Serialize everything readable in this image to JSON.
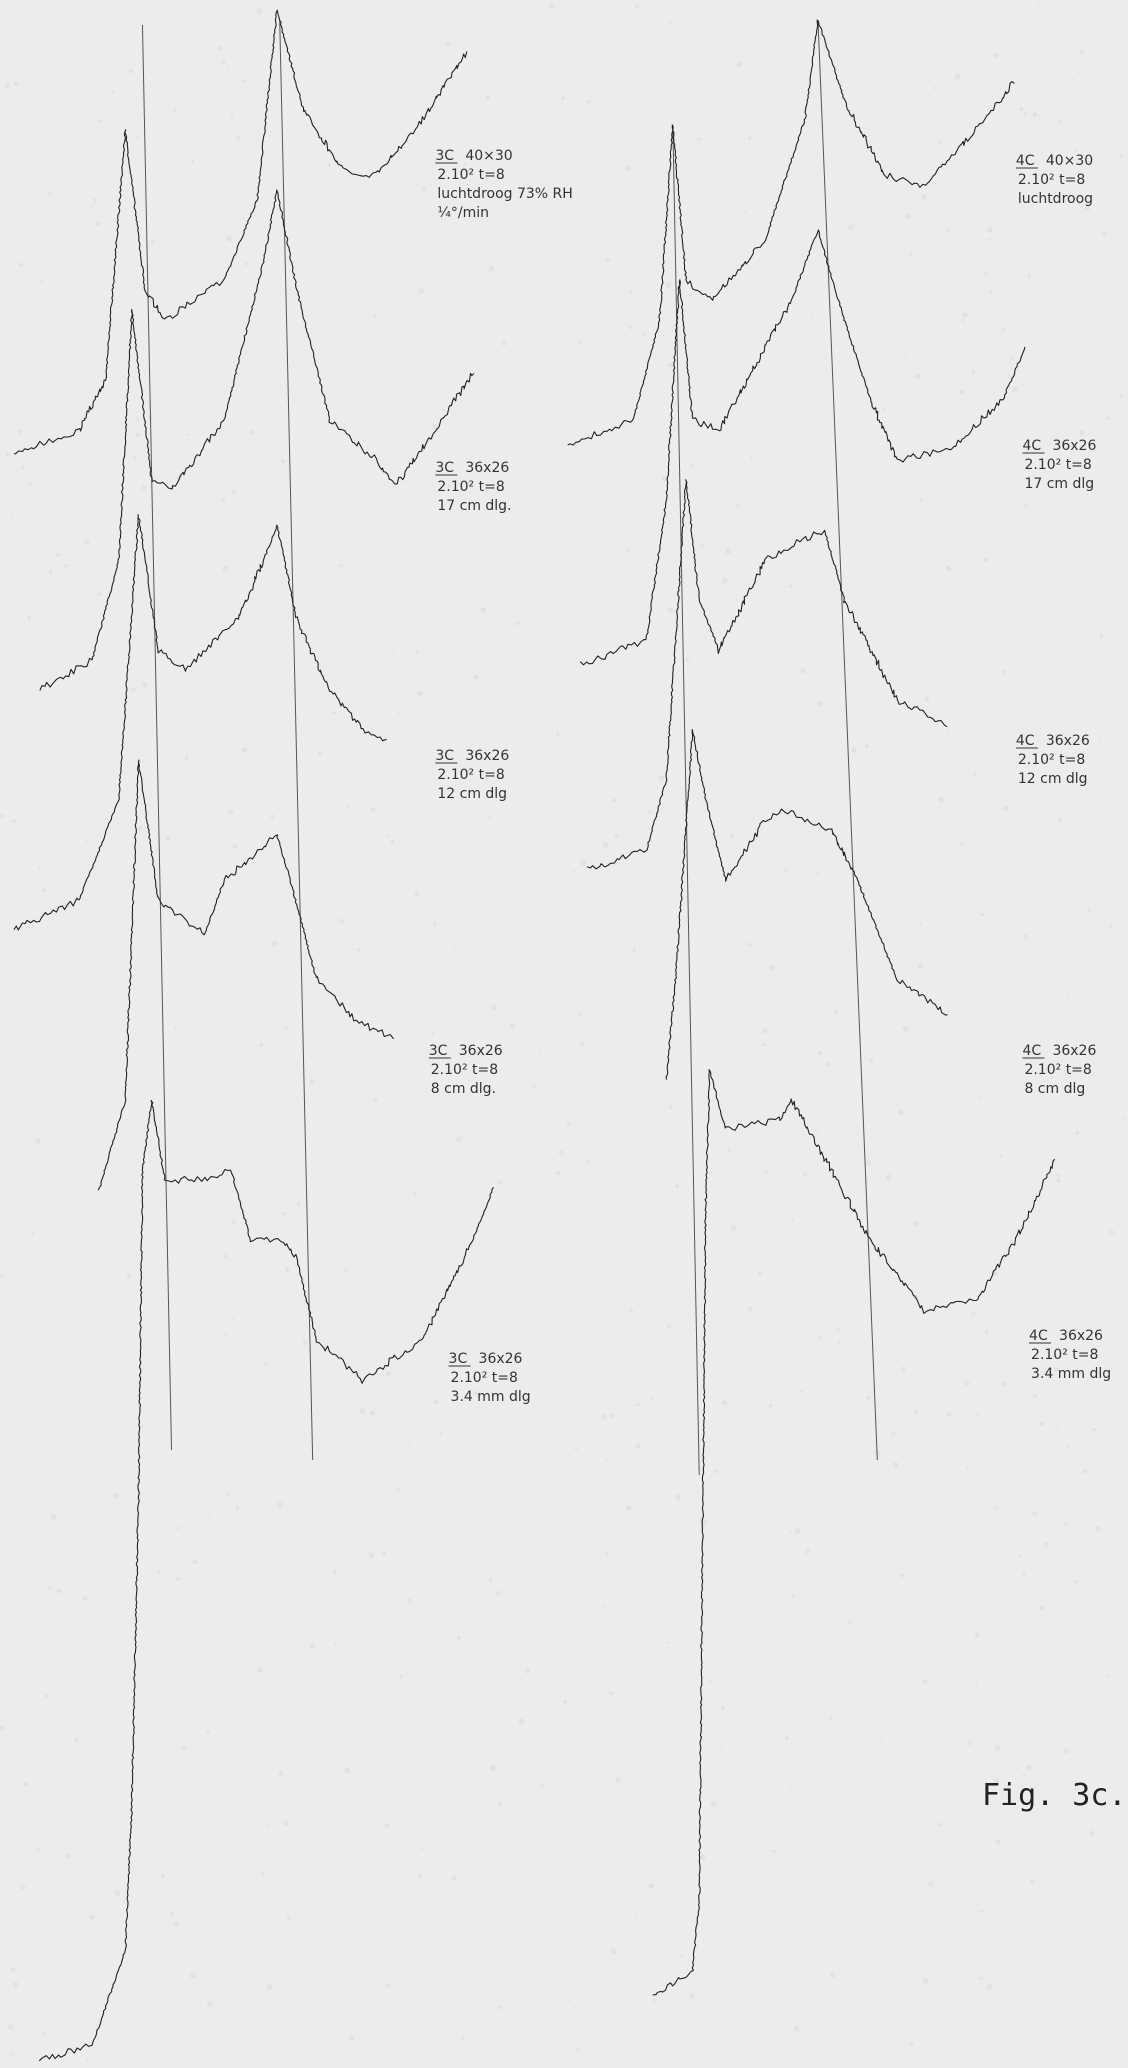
{
  "figure_label": "Fig. 3c.",
  "annotations": [
    {
      "sample": "3C",
      "size": "40×30",
      "params": "2.10² t=8",
      "condition": "luchtdroog 73% RH",
      "rate": "¼°/min"
    },
    {
      "sample": "3C",
      "size": "36x26",
      "params": "2.10² t=8",
      "condition": "17 cm dlg."
    },
    {
      "sample": "3C",
      "size": "36x26",
      "params": "2.10² t=8",
      "condition": "12 cm dlg"
    },
    {
      "sample": "3C",
      "size": "36x26",
      "params": "2.10² t=8",
      "condition": "8 cm dlg."
    },
    {
      "sample": "3C",
      "size": "36x26",
      "params": "2.10² t=8",
      "condition": "3.4 mm dlg"
    },
    {
      "sample": "4C",
      "size": "40×30",
      "params": "2.10² t=8",
      "condition": "luchtdroog"
    },
    {
      "sample": "4C",
      "size": "36x26",
      "params": "2.10² t=8",
      "condition": "17 cm dlg"
    },
    {
      "sample": "4C",
      "size": "36x26",
      "params": "2.10² t=8",
      "condition": "12 cm dlg"
    },
    {
      "sample": "4C",
      "size": "36x26",
      "params": "2.10² t=8",
      "condition": "8 cm dlg"
    },
    {
      "sample": "4C",
      "size": "36x26",
      "params": "2.10² t=8",
      "condition": "3.4 mm dlg"
    }
  ]
}
